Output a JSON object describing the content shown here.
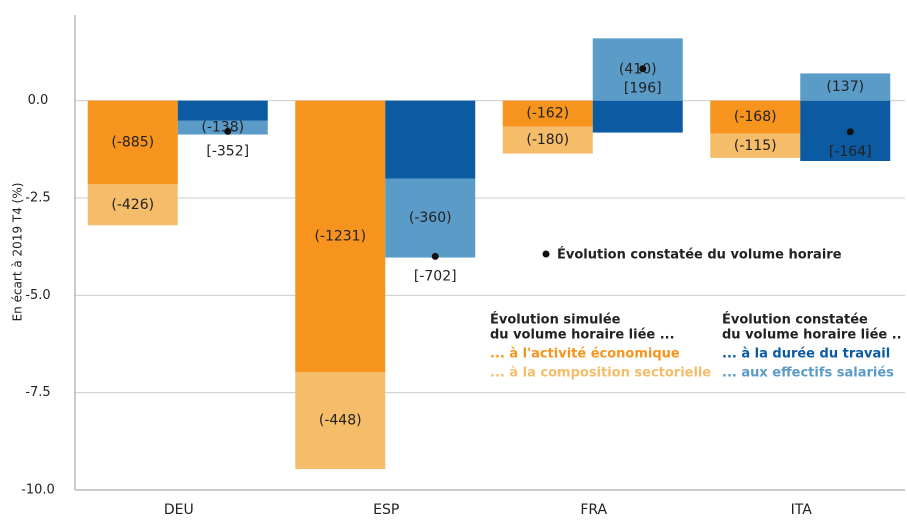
{
  "chart_data": {
    "type": "bar",
    "ylabel": "En écart à 2019 T4 (%)",
    "categories": [
      "DEU",
      "ESP",
      "FRA",
      "ITA"
    ],
    "ylim": [
      -10,
      2.2
    ],
    "yticks": [
      {
        "value": 0,
        "label": "0.0"
      },
      {
        "value": -2.5,
        "label": "-2.5"
      },
      {
        "value": -5,
        "label": "-5.0"
      },
      {
        "value": -7.5,
        "label": "-7.5"
      },
      {
        "value": -10,
        "label": "-10.0"
      }
    ],
    "grid": true,
    "groups": [
      {
        "title": [
          "Évolution  simulée",
          "du volume horaire liée ..."
        ],
        "series": [
          {
            "name": "... à l'activité économique",
            "color": "#f7941d",
            "values": [
              -2.15,
              -6.97,
              -0.67,
              -0.85
            ],
            "labels": [
              "(-885)",
              "(-1231)",
              "(-162)",
              "(-168)"
            ]
          },
          {
            "name": "... à la composition sectorielle",
            "color": "#f5bd6a",
            "values": [
              -1.05,
              -2.49,
              -0.69,
              -0.62
            ],
            "labels": [
              "(-426)",
              "(-448)",
              "(-180)",
              "(-115)"
            ]
          }
        ]
      },
      {
        "title": [
          "Évolution  constatée",
          "du volume horaire liée .."
        ],
        "series": [
          {
            "name": "... à la durée du travail",
            "color": "#0b5aa2",
            "values": [
              -0.51,
              -2.0,
              -0.82,
              -1.55
            ],
            "labels": [
              null,
              null,
              null,
              null
            ]
          },
          {
            "name": "... aux effectifs salariés",
            "color": "#5b9bc8",
            "values": [
              -0.36,
              -2.03,
              1.6,
              0.7
            ],
            "labels": [
              "(-138)",
              "(-360)",
              "(410)",
              "(137)"
            ]
          }
        ]
      }
    ],
    "points": {
      "name": "Évolution  constatée du volume horaire",
      "color": "#111111",
      "values": [
        -0.79,
        -4.0,
        0.82,
        -0.8
      ],
      "labels": [
        "[-352]",
        "[-702]",
        "[196]",
        "[-164]"
      ]
    }
  }
}
